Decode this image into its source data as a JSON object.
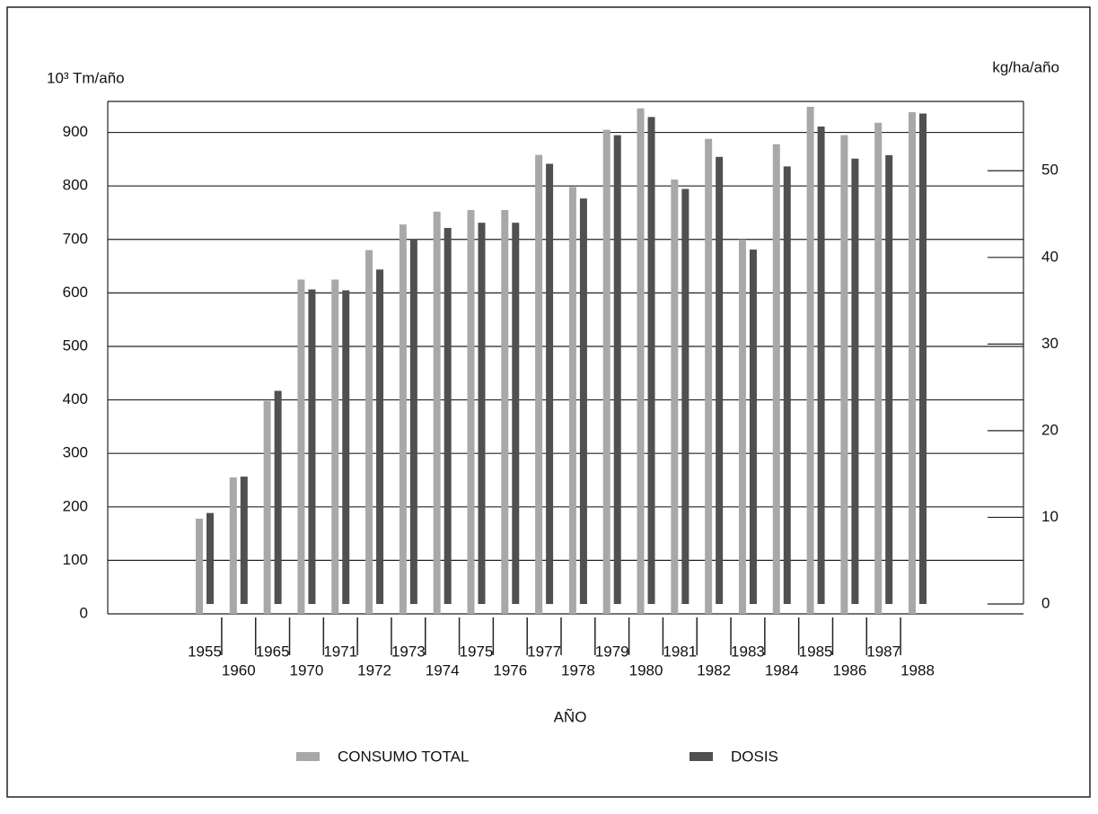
{
  "chart_data": {
    "type": "bar",
    "y_label": "10³ Tm/año",
    "y2_label": "kg/ha/año",
    "x_label": "AÑO",
    "categories": [
      "1955",
      "1960",
      "1965",
      "1970",
      "1971",
      "1972",
      "1973",
      "1974",
      "1975",
      "1976",
      "1977",
      "1978",
      "1979",
      "1980",
      "1981",
      "1982",
      "1983",
      "1984",
      "1985",
      "1986",
      "1987",
      "1988"
    ],
    "series": [
      {
        "name": "CONSUMO TOTAL",
        "color": "#a8a8a8",
        "values": [
          178,
          255,
          398,
          625,
          625,
          680,
          728,
          752,
          755,
          755,
          858,
          798,
          905,
          945,
          812,
          888,
          700,
          878,
          948,
          895,
          918,
          938
        ]
      },
      {
        "name": "DOSIS",
        "color": "#505050",
        "axis": "y2",
        "values": [
          10.5,
          14.7,
          24.6,
          36.3,
          36.2,
          38.6,
          42.1,
          43.4,
          44,
          44,
          50.8,
          46.8,
          54.1,
          56.2,
          47.9,
          51.6,
          40.9,
          50.5,
          55.1,
          51.4,
          51.8,
          56.6
        ]
      }
    ],
    "ylim": [
      0,
      958
    ],
    "yticks": [
      0,
      100,
      200,
      300,
      400,
      500,
      600,
      700,
      800,
      900
    ],
    "y2lim": [
      0,
      58
    ],
    "y2ticks": [
      0,
      10,
      20,
      30,
      40,
      50
    ],
    "grid": true,
    "legend": "bottom"
  }
}
